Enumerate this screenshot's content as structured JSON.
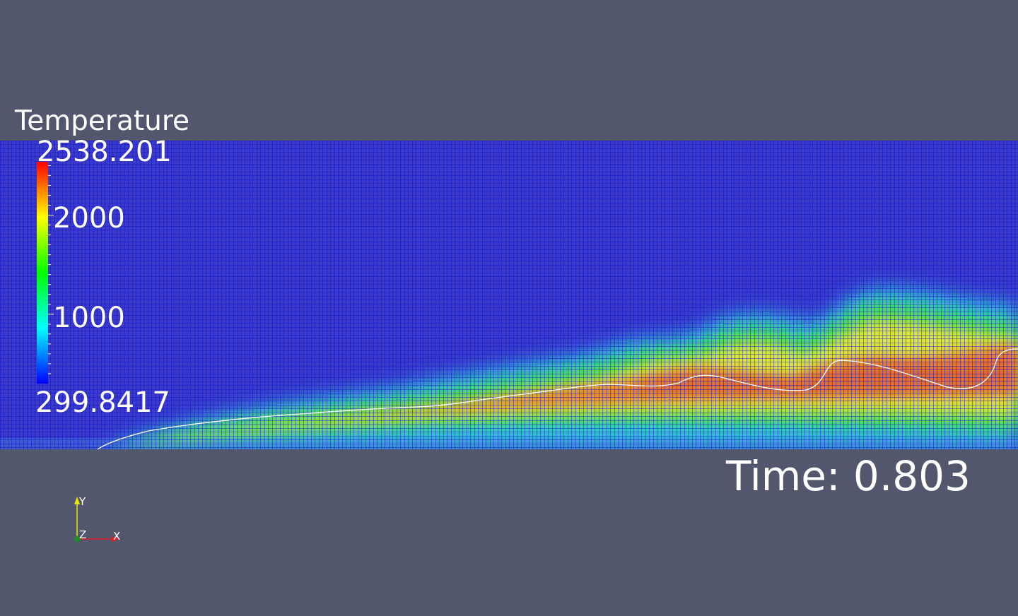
{
  "legend": {
    "title": "Temperature",
    "max_label": "2538.201",
    "min_label": "299.8417",
    "tick_labels": [
      "2000",
      "1000"
    ],
    "max_value": 2538.201,
    "min_value": 299.8417,
    "tick_values": [
      2000,
      1000
    ],
    "colormap": [
      "#0000ff",
      "#00ffff",
      "#00ff00",
      "#ffff00",
      "#ff0000"
    ]
  },
  "time": {
    "label": "Time: 0.803"
  },
  "orientation_axes": {
    "y": "Y",
    "z": "Z",
    "x": "X"
  },
  "colors": {
    "background": "#52576e",
    "mesh_line": "#1b1bd6",
    "cold_fill": "#3434b4",
    "flame_front": "#ffffff"
  }
}
